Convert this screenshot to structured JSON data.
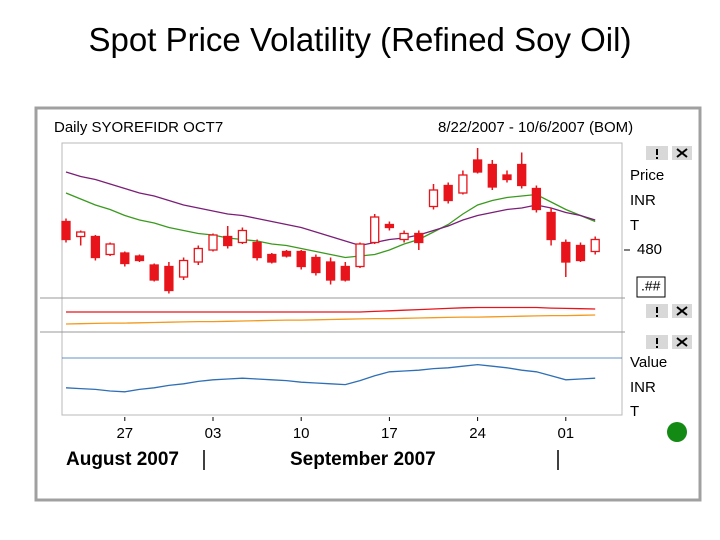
{
  "title": "Spot Price Volatility (Refined Soy Oil)",
  "header": {
    "symbol": "Daily SYOREFIDR OCT7",
    "range": "8/22/2007 - 10/6/2007 (BOM)"
  },
  "price_axis_labels": [
    "Price",
    "INR",
    "T"
  ],
  "precision_label": ".##",
  "value_axis_labels": [
    "Value",
    "INR",
    "T"
  ],
  "months": [
    "August 2007",
    "September 2007"
  ],
  "chart_data": {
    "type": "candlestick",
    "categories": [
      null,
      null,
      null,
      null,
      "27",
      null,
      null,
      null,
      null,
      null,
      "03",
      null,
      null,
      null,
      null,
      null,
      "10",
      null,
      null,
      null,
      null,
      null,
      "17",
      null,
      null,
      null,
      null,
      null,
      "24",
      null,
      null,
      null,
      null,
      null,
      "01",
      null,
      null
    ],
    "open": [
      499,
      489,
      489,
      477,
      478,
      476,
      470,
      469,
      462,
      472,
      480,
      489,
      485,
      485,
      477,
      479,
      479,
      475,
      472,
      469,
      469,
      485,
      497,
      487,
      491,
      509,
      523,
      518,
      540,
      537,
      530,
      537,
      521,
      505,
      485,
      483,
      479
    ],
    "high": [
      501,
      493,
      490,
      485,
      479,
      477,
      471,
      472,
      475,
      483,
      491,
      496,
      495,
      487,
      478,
      480,
      480,
      477,
      475,
      472,
      485,
      504,
      499,
      493,
      493,
      524,
      525,
      533,
      548,
      540,
      533,
      545,
      523,
      508,
      487,
      485,
      489
    ],
    "low": [
      485,
      483,
      473,
      476,
      469,
      472,
      459,
      451,
      460,
      470,
      479,
      481,
      484,
      473,
      471,
      475,
      467,
      463,
      457,
      459,
      468,
      484,
      493,
      485,
      480,
      507,
      511,
      517,
      531,
      520,
      525,
      521,
      505,
      483,
      462,
      472,
      477
    ],
    "close": [
      487,
      492,
      475,
      484,
      471,
      473,
      460,
      453,
      473,
      481,
      490,
      483,
      493,
      475,
      472,
      476,
      469,
      465,
      460,
      460,
      484,
      502,
      495,
      491,
      485,
      520,
      513,
      530,
      532,
      522,
      527,
      523,
      507,
      487,
      472,
      473,
      487
    ],
    "up_color": "#ffffff",
    "down_color": "#e8141b",
    "ylim": [
      450,
      550
    ],
    "yticks": [
      480
    ],
    "series": [
      {
        "color": "#3a9a1e",
        "values": [
          518,
          514,
          510,
          507,
          503,
          500,
          498,
          495,
          493,
          491,
          490,
          488,
          487,
          486,
          484,
          483,
          481,
          479,
          477,
          475,
          476,
          477,
          480,
          484,
          487,
          492,
          497,
          504,
          510,
          513,
          515,
          516,
          517,
          512,
          507,
          503,
          499
        ]
      },
      {
        "color": "#7a1e78",
        "values": [
          532,
          529,
          527,
          524,
          521,
          518,
          516,
          513,
          510,
          508,
          506,
          504,
          503,
          501,
          499,
          497,
          495,
          492,
          489,
          486,
          483,
          485,
          487,
          488,
          490,
          493,
          496,
          500,
          503,
          505,
          507,
          508,
          510,
          508,
          505,
          503,
          500
        ]
      }
    ],
    "panels": [
      {
        "ylim": [
          0,
          10
        ],
        "series": [
          {
            "color": "#e8141b",
            "values": [
              6.0,
              6.0,
              6.0,
              6.0,
              6.0,
              6.0,
              6.0,
              6.0,
              6.0,
              6.0,
              6.0,
              6.0,
              6.0,
              6.0,
              6.0,
              6.0,
              6.0,
              6.0,
              6.0,
              6.0,
              6.0,
              6.2,
              6.4,
              6.6,
              6.8,
              7.0,
              7.2,
              7.4,
              7.5,
              7.5,
              7.5,
              7.5,
              7.5,
              7.3,
              7.2,
              7.1,
              7.0
            ]
          },
          {
            "color": "#f39a1e",
            "values": [
              2.0,
              2.1,
              2.2,
              2.3,
              2.3,
              2.4,
              2.5,
              2.6,
              2.7,
              2.8,
              2.8,
              2.9,
              3.0,
              3.1,
              3.2,
              3.3,
              3.3,
              3.4,
              3.5,
              3.6,
              3.7,
              3.8,
              3.8,
              3.9,
              4.0,
              4.1,
              4.2,
              4.3,
              4.3,
              4.4,
              4.5,
              4.6,
              4.7,
              4.8,
              4.8,
              4.9,
              5.0
            ]
          }
        ]
      },
      {
        "ylim": [
          0,
          10
        ],
        "series": [
          {
            "color": "#2f6fb5",
            "values": [
              3.4,
              3.3,
              3.2,
              3.0,
              2.9,
              3.2,
              3.4,
              3.7,
              3.9,
              4.2,
              4.4,
              4.5,
              4.6,
              4.5,
              4.4,
              4.3,
              4.1,
              4.0,
              3.9,
              3.8,
              4.3,
              4.9,
              5.4,
              5.5,
              5.6,
              5.8,
              5.9,
              6.1,
              6.3,
              6.1,
              5.9,
              5.6,
              5.4,
              4.9,
              4.4,
              4.5,
              4.6
            ]
          }
        ]
      }
    ]
  }
}
